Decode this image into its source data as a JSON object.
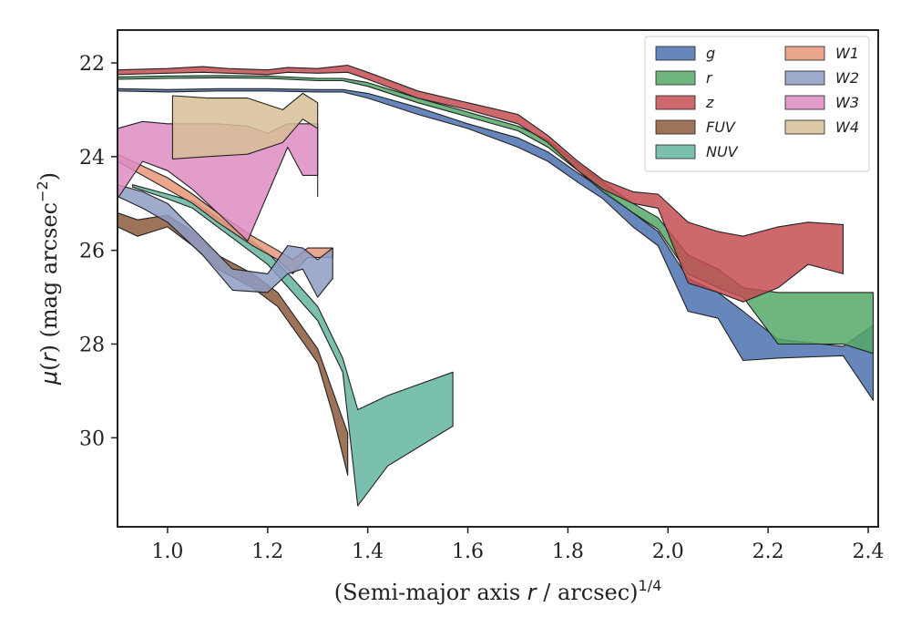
{
  "chart_data": {
    "type": "area",
    "xlabel": "(Semi-major axis r / arcsec)^1/4",
    "ylabel": "μ(r) (mag arcsec^−2)",
    "xlim": [
      0.9,
      2.42
    ],
    "ylim": [
      31.9,
      21.3
    ],
    "y_inverted": true,
    "grid": false,
    "legend_placement": "top-right",
    "x_ticks": [
      "1.0",
      "1.2",
      "1.4",
      "1.6",
      "1.8",
      "2.0",
      "2.2",
      "2.4"
    ],
    "x_tick_values": [
      1.0,
      1.2,
      1.4,
      1.6,
      1.8,
      2.0,
      2.2,
      2.4
    ],
    "y_ticks": [
      "22",
      "24",
      "26",
      "28",
      "30"
    ],
    "y_tick_values": [
      22,
      24,
      26,
      28,
      30
    ],
    "series": [
      {
        "name": "g",
        "color": "#4c72b0",
        "x": [
          0.9,
          1.0,
          1.1,
          1.2,
          1.3,
          1.35,
          1.4,
          1.5,
          1.6,
          1.7,
          1.76,
          1.82,
          1.87,
          1.93,
          1.98,
          2.04,
          2.1,
          2.15,
          2.22,
          2.35,
          2.41
        ],
        "upper": [
          22.6,
          22.62,
          22.6,
          22.6,
          22.62,
          22.62,
          22.75,
          23.1,
          23.4,
          23.8,
          24.1,
          24.55,
          24.9,
          25.5,
          25.9,
          27.3,
          27.45,
          28.35,
          28.3,
          28.25,
          29.2
        ],
        "lower": [
          22.55,
          22.57,
          22.55,
          22.55,
          22.57,
          22.57,
          22.65,
          22.95,
          23.3,
          23.6,
          23.9,
          24.35,
          24.7,
          25.2,
          25.6,
          26.6,
          26.9,
          27.3,
          27.9,
          28.05,
          27.6
        ]
      },
      {
        "name": "r",
        "color": "#55a868",
        "x": [
          0.9,
          1.0,
          1.1,
          1.2,
          1.3,
          1.35,
          1.4,
          1.5,
          1.6,
          1.7,
          1.76,
          1.82,
          1.87,
          1.93,
          1.98,
          2.04,
          2.1,
          2.15,
          2.22,
          2.35,
          2.41
        ],
        "upper": [
          22.35,
          22.33,
          22.32,
          22.33,
          22.38,
          22.38,
          22.5,
          22.85,
          23.15,
          23.45,
          23.8,
          24.3,
          24.75,
          25.2,
          25.55,
          26.5,
          26.8,
          27.0,
          28.0,
          28.0,
          28.2
        ],
        "lower": [
          22.3,
          22.28,
          22.27,
          22.28,
          22.33,
          22.33,
          22.42,
          22.75,
          23.05,
          23.35,
          23.65,
          24.15,
          24.55,
          25.0,
          25.3,
          26.1,
          26.4,
          26.8,
          26.9,
          26.9,
          26.9
        ]
      },
      {
        "name": "z",
        "color": "#c44e52",
        "x": [
          0.9,
          1.0,
          1.07,
          1.12,
          1.2,
          1.24,
          1.3,
          1.36,
          1.4,
          1.5,
          1.6,
          1.7,
          1.76,
          1.82,
          1.87,
          1.93,
          1.98,
          2.04,
          2.1,
          2.15,
          2.22,
          2.28,
          2.35
        ],
        "upper": [
          22.25,
          22.22,
          22.2,
          22.22,
          22.25,
          22.2,
          22.22,
          22.2,
          22.35,
          22.75,
          23.0,
          23.3,
          23.7,
          24.3,
          24.7,
          25.0,
          25.1,
          26.7,
          26.9,
          27.1,
          26.8,
          26.3,
          26.5
        ],
        "lower": [
          22.15,
          22.12,
          22.08,
          22.12,
          22.15,
          22.1,
          22.12,
          22.05,
          22.2,
          22.6,
          22.85,
          23.1,
          23.55,
          24.1,
          24.5,
          24.75,
          24.8,
          25.4,
          25.6,
          25.7,
          25.5,
          25.4,
          25.45
        ]
      },
      {
        "name": "FUV",
        "color": "#8c5a3c",
        "x": [
          0.9,
          0.94,
          1.0,
          1.05,
          1.1,
          1.17,
          1.22,
          1.26,
          1.3,
          1.33,
          1.36
        ],
        "upper": [
          25.5,
          25.7,
          25.5,
          25.9,
          26.4,
          26.8,
          27.2,
          27.8,
          28.4,
          29.5,
          30.8
        ],
        "lower": [
          25.2,
          25.35,
          25.25,
          25.6,
          26.1,
          26.5,
          26.9,
          27.5,
          28.1,
          29.0,
          29.9
        ]
      },
      {
        "name": "NUV",
        "color": "#64b5a0",
        "x": [
          0.93,
          1.0,
          1.05,
          1.1,
          1.2,
          1.25,
          1.3,
          1.35,
          1.38,
          1.44,
          1.57
        ],
        "upper": [
          24.65,
          24.9,
          25.1,
          25.5,
          26.3,
          26.9,
          27.5,
          28.6,
          31.45,
          30.6,
          29.75
        ],
        "lower": [
          24.6,
          24.8,
          24.95,
          25.3,
          26.05,
          26.6,
          27.2,
          28.3,
          29.4,
          29.1,
          28.6
        ]
      },
      {
        "name": "W1",
        "color": "#e8967a",
        "x": [
          0.9,
          1.0,
          1.05,
          1.1,
          1.17,
          1.22,
          1.25,
          1.28,
          1.33
        ],
        "upper": [
          24.1,
          24.7,
          25.0,
          25.4,
          25.9,
          26.2,
          26.5,
          26.15,
          26.15
        ],
        "lower": [
          23.95,
          24.45,
          24.8,
          25.2,
          25.7,
          26.0,
          26.2,
          25.95,
          25.95
        ]
      },
      {
        "name": "W2",
        "color": "#8e9cc4",
        "x": [
          0.9,
          0.95,
          1.0,
          1.07,
          1.13,
          1.2,
          1.24,
          1.27,
          1.3,
          1.33
        ],
        "upper": [
          24.85,
          25.1,
          25.4,
          26.1,
          26.85,
          26.9,
          26.5,
          26.4,
          27.0,
          26.6
        ],
        "lower": [
          24.6,
          24.75,
          25.0,
          25.75,
          26.4,
          26.5,
          25.9,
          25.95,
          26.2,
          25.95
        ]
      },
      {
        "name": "W3",
        "color": "#dd8cc2",
        "x": [
          0.9,
          0.95,
          1.0,
          1.05,
          1.1,
          1.16,
          1.2,
          1.24,
          1.27,
          1.3
        ],
        "upper": [
          24.9,
          24.1,
          24.3,
          24.7,
          25.2,
          25.8,
          24.8,
          23.8,
          24.4,
          24.4
        ],
        "lower": [
          23.4,
          23.25,
          23.3,
          23.3,
          23.3,
          23.35,
          23.5,
          23.3,
          23.3,
          23.3
        ]
      },
      {
        "name": "W4",
        "color": "#d8bf96",
        "x": [
          1.01,
          1.08,
          1.16,
          1.23,
          1.27,
          1.3,
          1.3
        ],
        "upper": [
          24.05,
          24.0,
          23.95,
          23.7,
          23.2,
          23.4,
          24.85
        ],
        "lower": [
          22.7,
          22.75,
          22.75,
          23.0,
          22.65,
          22.85,
          22.85
        ]
      }
    ]
  }
}
